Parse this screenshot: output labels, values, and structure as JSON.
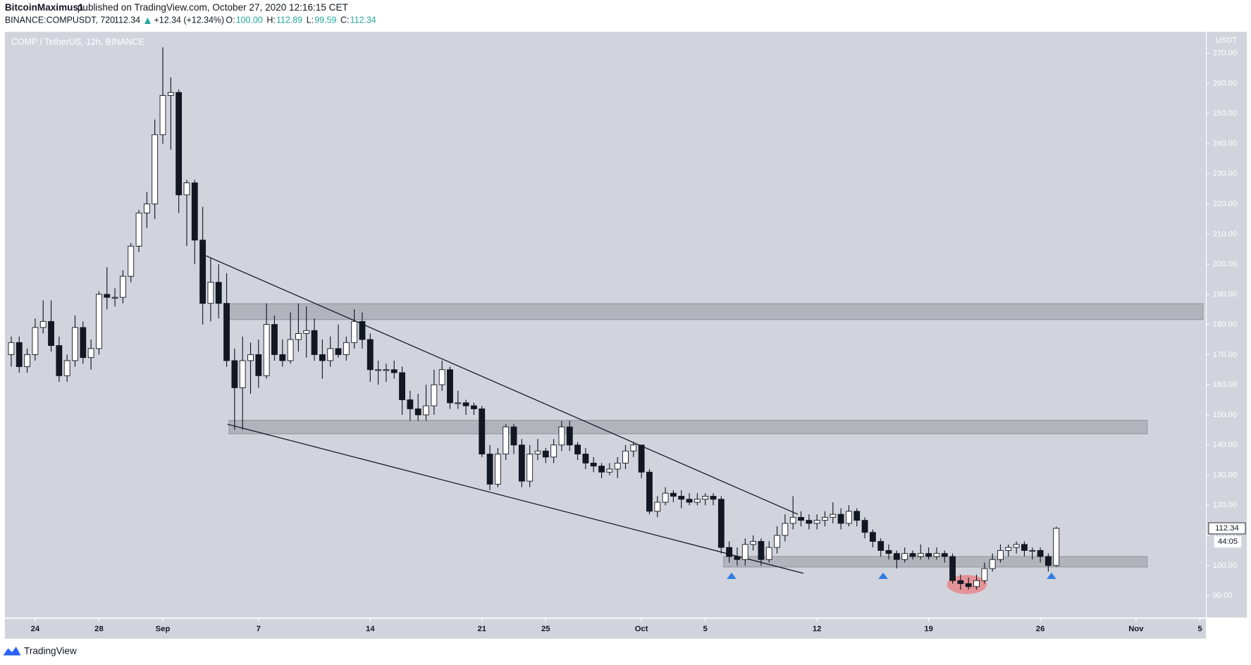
{
  "header": {
    "author": "BitcoinMaximus1",
    "published": "published on TradingView.com, October 27, 2020 12:16:15 CET",
    "symbol": "BINANCE:COMPUSDT, 720",
    "last": "112.34",
    "change": "+12.34 (+12.34%)",
    "ohlc": [
      {
        "label": "O:",
        "value": "100.00"
      },
      {
        "label": "H:",
        "value": "112.89"
      },
      {
        "label": "L:",
        "value": "99.59"
      },
      {
        "label": "C:",
        "value": "112.34"
      }
    ]
  },
  "footer": {
    "brand": "TradingView"
  },
  "chart_data": {
    "type": "candlestick",
    "title": "COMP / TetherUS, 12h, BINANCE",
    "y_unit": "USDT",
    "countdown": "44:05",
    "up_color": "#ffffff",
    "down_color": "#131722",
    "xlim": [
      -1.9,
      73.4
    ],
    "ylim": [
      82.6,
      277.1
    ],
    "xticks": [
      {
        "value": 0,
        "label": "24"
      },
      {
        "value": 4,
        "label": "28"
      },
      {
        "value": 8,
        "label": "Sep"
      },
      {
        "value": 14,
        "label": "7"
      },
      {
        "value": 21,
        "label": "14"
      },
      {
        "value": 28,
        "label": "21"
      },
      {
        "value": 32,
        "label": "25"
      },
      {
        "value": 38,
        "label": "Oct"
      },
      {
        "value": 42,
        "label": "5"
      },
      {
        "value": 49,
        "label": "12"
      },
      {
        "value": 56,
        "label": "19"
      },
      {
        "value": 63,
        "label": "26"
      },
      {
        "value": 69,
        "label": "Nov"
      },
      {
        "value": 73,
        "label": "5"
      }
    ],
    "yticks": [
      {
        "value": 90,
        "label": "90.00"
      },
      {
        "value": 100,
        "label": "100.00"
      },
      {
        "value": 110,
        "label": "110.00"
      },
      {
        "value": 120,
        "label": "120.00"
      },
      {
        "value": 130,
        "label": "130.00"
      },
      {
        "value": 140,
        "label": "140.00"
      },
      {
        "value": 150,
        "label": "150.00"
      },
      {
        "value": 160,
        "label": "160.00"
      },
      {
        "value": 170,
        "label": "170.00"
      },
      {
        "value": 180,
        "label": "180.00"
      },
      {
        "value": 190,
        "label": "190.00"
      },
      {
        "value": 200,
        "label": "200.00"
      },
      {
        "value": 210,
        "label": "210.00"
      },
      {
        "value": 220,
        "label": "220.00"
      },
      {
        "value": 230,
        "label": "230.00"
      },
      {
        "value": 240,
        "label": "240.00"
      },
      {
        "value": 250,
        "label": "250.00"
      },
      {
        "value": 260,
        "label": "260.00"
      },
      {
        "value": 270,
        "label": "270.00"
      }
    ],
    "x": [
      -1.5,
      -1,
      -0.5,
      0,
      0.5,
      1,
      1.5,
      2,
      2.5,
      3,
      3.5,
      4,
      4.5,
      5,
      5.5,
      6,
      6.5,
      7,
      7.5,
      8,
      8.5,
      9,
      9.5,
      10,
      10.5,
      11,
      11.5,
      12,
      12.5,
      13,
      13.5,
      14,
      14.5,
      15,
      15.5,
      16,
      16.5,
      17,
      17.5,
      18,
      18.5,
      19,
      19.5,
      20,
      20.5,
      21,
      21.5,
      22,
      22.5,
      23,
      23.5,
      24,
      24.5,
      25,
      25.5,
      26,
      26.5,
      27,
      27.5,
      28,
      28.5,
      29,
      29.5,
      30,
      30.5,
      31,
      31.5,
      32,
      32.5,
      33,
      33.5,
      34,
      34.5,
      35,
      35.5,
      36,
      36.5,
      37,
      37.5,
      38,
      38.5,
      39,
      39.5,
      40,
      40.5,
      41,
      41.5,
      42,
      42.5,
      43,
      43.5,
      44,
      44.5,
      45,
      45.5,
      46,
      46.5,
      47,
      47.5,
      48,
      48.5,
      49,
      49.5,
      50,
      50.5,
      51,
      51.5,
      52,
      52.5,
      53,
      53.5,
      54,
      54.5,
      55,
      55.5,
      56,
      56.5,
      57,
      57.5,
      58,
      58.5,
      59,
      59.5,
      60,
      60.5,
      61,
      61.5,
      62,
      62.5,
      63,
      63.5,
      64
    ],
    "ohlc": [
      [
        170,
        176,
        166,
        174
      ],
      [
        174,
        176,
        164,
        166
      ],
      [
        166,
        172,
        164,
        170
      ],
      [
        170,
        182,
        168,
        179
      ],
      [
        179,
        188,
        177,
        181
      ],
      [
        181,
        188,
        171,
        173
      ],
      [
        173,
        176,
        161,
        163
      ],
      [
        163,
        170,
        161,
        168
      ],
      [
        168,
        183,
        166,
        179
      ],
      [
        179,
        181,
        167,
        169
      ],
      [
        169,
        175,
        165,
        172
      ],
      [
        172,
        191,
        170,
        190
      ],
      [
        190,
        199,
        185,
        189
      ],
      [
        189,
        192,
        186,
        189
      ],
      [
        189,
        198,
        187,
        196
      ],
      [
        196,
        207,
        194,
        206
      ],
      [
        206,
        218,
        204,
        217
      ],
      [
        217,
        224,
        212,
        220
      ],
      [
        220,
        248,
        215,
        243
      ],
      [
        243,
        272,
        240,
        256
      ],
      [
        256,
        262,
        238,
        257
      ],
      [
        257,
        258,
        217,
        223
      ],
      [
        223,
        228,
        206,
        227
      ],
      [
        227,
        228,
        200,
        208
      ],
      [
        208,
        219,
        180,
        187
      ],
      [
        187,
        202,
        181,
        194
      ],
      [
        194,
        200,
        182,
        187
      ],
      [
        187,
        197,
        166,
        168
      ],
      [
        168,
        172,
        145,
        159
      ],
      [
        159,
        176,
        145,
        168
      ],
      [
        168,
        174,
        157,
        170
      ],
      [
        170,
        175,
        159,
        163
      ],
      [
        163,
        187,
        162,
        180
      ],
      [
        180,
        183,
        168,
        170
      ],
      [
        170,
        175,
        166,
        168
      ],
      [
        168,
        184,
        167,
        175
      ],
      [
        175,
        187,
        171,
        177
      ],
      [
        177,
        186,
        169,
        178
      ],
      [
        178,
        182,
        168,
        170
      ],
      [
        170,
        175,
        162,
        168
      ],
      [
        168,
        176,
        166,
        172
      ],
      [
        172,
        180,
        169,
        170
      ],
      [
        170,
        176,
        168,
        174
      ],
      [
        174,
        185,
        172,
        181
      ],
      [
        181,
        184,
        172,
        175
      ],
      [
        175,
        177,
        161,
        165
      ],
      [
        165,
        168,
        160,
        165
      ],
      [
        165,
        167,
        161,
        165
      ],
      [
        165,
        168,
        162,
        164
      ],
      [
        164,
        166,
        150,
        155
      ],
      [
        155,
        158,
        148,
        152
      ],
      [
        152,
        157,
        148,
        150
      ],
      [
        150,
        160,
        148,
        153
      ],
      [
        153,
        165,
        150,
        160
      ],
      [
        160,
        168,
        158,
        165
      ],
      [
        165,
        166,
        152,
        154
      ],
      [
        154,
        158,
        152,
        154
      ],
      [
        154,
        155,
        150,
        153
      ],
      [
        153,
        154,
        150,
        152
      ],
      [
        152,
        153,
        136,
        137
      ],
      [
        137,
        140,
        125,
        127
      ],
      [
        127,
        139,
        126,
        137
      ],
      [
        137,
        147,
        135,
        146
      ],
      [
        146,
        147,
        137,
        140
      ],
      [
        140,
        142,
        126,
        128
      ],
      [
        128,
        140,
        126,
        137
      ],
      [
        137,
        142,
        135,
        138
      ],
      [
        138,
        139,
        134,
        136
      ],
      [
        136,
        142,
        134,
        140
      ],
      [
        140,
        148,
        138,
        146
      ],
      [
        146,
        148,
        138,
        140
      ],
      [
        140,
        141,
        135,
        137
      ],
      [
        137,
        139,
        132,
        134
      ],
      [
        134,
        136,
        131,
        133
      ],
      [
        133,
        134,
        129,
        131
      ],
      [
        131,
        134,
        130,
        132
      ],
      [
        132,
        136,
        129,
        134
      ],
      [
        134,
        140,
        132,
        138
      ],
      [
        138,
        141,
        136,
        140
      ],
      [
        140,
        140,
        129,
        131
      ],
      [
        131,
        132,
        117,
        118
      ],
      [
        118,
        123,
        116,
        121
      ],
      [
        121,
        126,
        120,
        124
      ],
      [
        124,
        125,
        121,
        123
      ],
      [
        123,
        125,
        119,
        122
      ],
      [
        122,
        124,
        120,
        121
      ],
      [
        121,
        124,
        120,
        122
      ],
      [
        122,
        124,
        120,
        123
      ],
      [
        123,
        124,
        120,
        122
      ],
      [
        122,
        123,
        104,
        106
      ],
      [
        106,
        108,
        101,
        103
      ],
      [
        103,
        106,
        100,
        102
      ],
      [
        102,
        109,
        100,
        107
      ],
      [
        107,
        110,
        105,
        108
      ],
      [
        108,
        109,
        100,
        102
      ],
      [
        102,
        108,
        101,
        106
      ],
      [
        106,
        113,
        104,
        110
      ],
      [
        110,
        117,
        108,
        114
      ],
      [
        114,
        123,
        112,
        116
      ],
      [
        116,
        118,
        113,
        115
      ],
      [
        115,
        117,
        112,
        114
      ],
      [
        114,
        117,
        112,
        115
      ],
      [
        115,
        118,
        113,
        116
      ],
      [
        116,
        121,
        114,
        117
      ],
      [
        117,
        119,
        112,
        114
      ],
      [
        114,
        120,
        113,
        118
      ],
      [
        118,
        119,
        113,
        115
      ],
      [
        115,
        116,
        109,
        111
      ],
      [
        111,
        112,
        106,
        108
      ],
      [
        108,
        109,
        103,
        105
      ],
      [
        105,
        107,
        102,
        104
      ],
      [
        104,
        105,
        99,
        102
      ],
      [
        102,
        106,
        101,
        104
      ],
      [
        104,
        105,
        102,
        103
      ],
      [
        103,
        107,
        102,
        104
      ],
      [
        104,
        106,
        102,
        103
      ],
      [
        103,
        106,
        102,
        104
      ],
      [
        104,
        105,
        101,
        103
      ],
      [
        103,
        104,
        94,
        95
      ],
      [
        95,
        97,
        92,
        94
      ],
      [
        94,
        96,
        92,
        93
      ],
      [
        93,
        97,
        92,
        95
      ],
      [
        95,
        101,
        94,
        99
      ],
      [
        99,
        104,
        98,
        102
      ],
      [
        102,
        107,
        101,
        105
      ],
      [
        105,
        107,
        103,
        106
      ],
      [
        106,
        108,
        104,
        107
      ],
      [
        107,
        108,
        103,
        105
      ],
      [
        105,
        106,
        102,
        105
      ],
      [
        105,
        106,
        101,
        103
      ],
      [
        103,
        104,
        98,
        100
      ],
      [
        100,
        112.89,
        99.59,
        112.34
      ]
    ],
    "zones": [
      {
        "x": [
          12.15,
          73.2
        ],
        "y": [
          181.6,
          186.9
        ]
      },
      {
        "x": [
          12.15,
          69.7
        ],
        "y": [
          143.7,
          148.2
        ]
      },
      {
        "x": [
          43.15,
          69.7
        ],
        "y": [
          99.5,
          103
        ]
      }
    ],
    "trendlines": [
      {
        "x": [
          10.7,
          47.8
        ],
        "y": [
          202.8,
          117
        ]
      },
      {
        "x": [
          12.05,
          48.15
        ],
        "y": [
          146.9,
          97.4
        ]
      }
    ],
    "markers": {
      "color": "#2f7de1",
      "x": [
        43.65,
        53.15,
        63.7
      ],
      "y": [
        96.6,
        96.6,
        96.6
      ]
    },
    "highlight": {
      "color": "#e8888c",
      "x": 58.4,
      "y": 93.7
    }
  }
}
